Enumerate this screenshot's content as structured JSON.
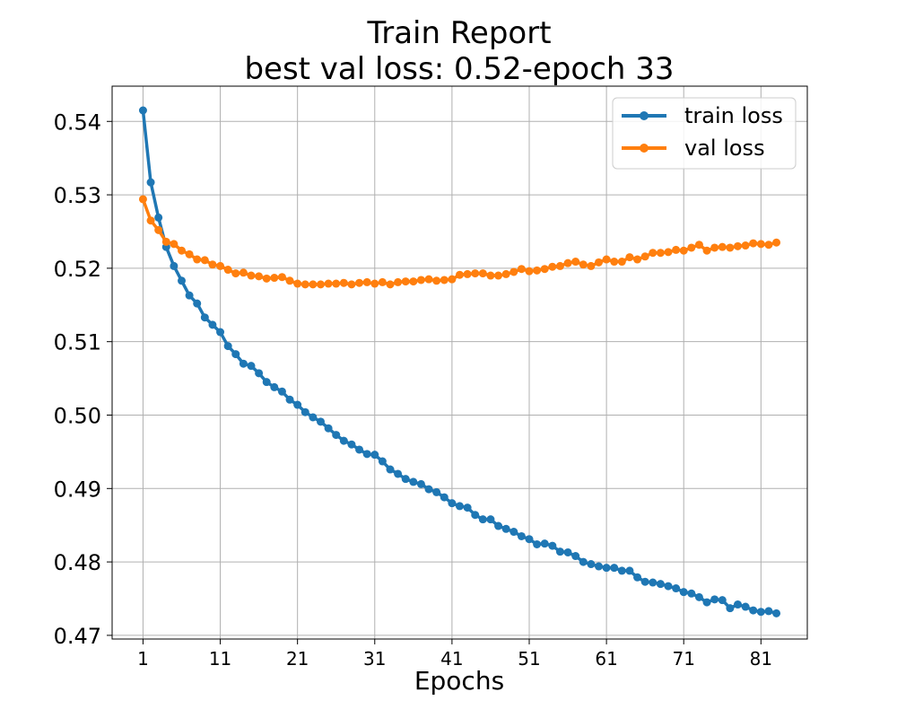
{
  "chart_data": {
    "type": "line",
    "title_line1": "Train Report",
    "title_line2": "best val loss: 0.52-epoch 33",
    "xlabel": "Epochs",
    "ylabel": "",
    "xlim": [
      -3,
      87
    ],
    "ylim": [
      0.4695,
      0.5448
    ],
    "x_ticks": [
      1,
      11,
      21,
      31,
      41,
      51,
      61,
      71,
      81
    ],
    "y_ticks": [
      0.47,
      0.48,
      0.49,
      0.5,
      0.51,
      0.52,
      0.53,
      0.54
    ],
    "y_tick_labels": [
      "0.47",
      "0.48",
      "0.49",
      "0.50",
      "0.51",
      "0.52",
      "0.53",
      "0.54"
    ],
    "grid": true,
    "legend_position": "top-right",
    "x": [
      1,
      2,
      3,
      4,
      5,
      6,
      7,
      8,
      9,
      10,
      11,
      12,
      13,
      14,
      15,
      16,
      17,
      18,
      19,
      20,
      21,
      22,
      23,
      24,
      25,
      26,
      27,
      28,
      29,
      30,
      31,
      32,
      33,
      34,
      35,
      36,
      37,
      38,
      39,
      40,
      41,
      42,
      43,
      44,
      45,
      46,
      47,
      48,
      49,
      50,
      51,
      52,
      53,
      54,
      55,
      56,
      57,
      58,
      59,
      60,
      61,
      62,
      63,
      64,
      65,
      66,
      67,
      68,
      69,
      70,
      71,
      72,
      73,
      74,
      75,
      76,
      77,
      78,
      79,
      80,
      81,
      82,
      83
    ],
    "series": [
      {
        "name": "train loss",
        "color": "#1f77b4",
        "values": [
          0.5415,
          0.5317,
          0.5269,
          0.5229,
          0.5203,
          0.5183,
          0.5163,
          0.5152,
          0.5133,
          0.5123,
          0.5113,
          0.5094,
          0.5083,
          0.507,
          0.5067,
          0.5057,
          0.5045,
          0.5038,
          0.5032,
          0.5021,
          0.5014,
          0.5004,
          0.4997,
          0.4991,
          0.4982,
          0.4973,
          0.4965,
          0.496,
          0.4953,
          0.4947,
          0.4946,
          0.4937,
          0.4926,
          0.492,
          0.4913,
          0.4909,
          0.4906,
          0.4899,
          0.4895,
          0.4888,
          0.488,
          0.4876,
          0.4874,
          0.4864,
          0.4858,
          0.4858,
          0.4849,
          0.4845,
          0.4841,
          0.4835,
          0.4831,
          0.4824,
          0.4825,
          0.4822,
          0.4814,
          0.4813,
          0.4808,
          0.48,
          0.4797,
          0.4794,
          0.4792,
          0.4792,
          0.4788,
          0.4788,
          0.4779,
          0.4773,
          0.4772,
          0.477,
          0.4767,
          0.4764,
          0.4759,
          0.4757,
          0.4752,
          0.4745,
          0.4749,
          0.4748,
          0.4737,
          0.4742,
          0.4739,
          0.4734,
          0.4732,
          0.4733,
          0.473
        ]
      },
      {
        "name": "val loss",
        "color": "#ff7f0e",
        "values": [
          0.5294,
          0.5265,
          0.5252,
          0.5236,
          0.5233,
          0.5224,
          0.5219,
          0.5212,
          0.5211,
          0.5205,
          0.5203,
          0.5198,
          0.5193,
          0.5194,
          0.519,
          0.5189,
          0.5186,
          0.5187,
          0.5188,
          0.5183,
          0.5179,
          0.5178,
          0.5178,
          0.5178,
          0.5179,
          0.5179,
          0.518,
          0.5178,
          0.518,
          0.5181,
          0.5179,
          0.5181,
          0.5178,
          0.5181,
          0.5182,
          0.5182,
          0.5184,
          0.5185,
          0.5183,
          0.5184,
          0.5185,
          0.5191,
          0.5192,
          0.5193,
          0.5193,
          0.519,
          0.519,
          0.5192,
          0.5195,
          0.5199,
          0.5196,
          0.5197,
          0.5199,
          0.5202,
          0.5203,
          0.5207,
          0.5209,
          0.5205,
          0.5203,
          0.5208,
          0.5212,
          0.5209,
          0.5209,
          0.5215,
          0.5212,
          0.5216,
          0.5221,
          0.5221,
          0.5222,
          0.5225,
          0.5224,
          0.5228,
          0.5232,
          0.5224,
          0.5228,
          0.5229,
          0.5228,
          0.523,
          0.5231,
          0.5234,
          0.5233,
          0.5232,
          0.5235
        ]
      }
    ]
  }
}
